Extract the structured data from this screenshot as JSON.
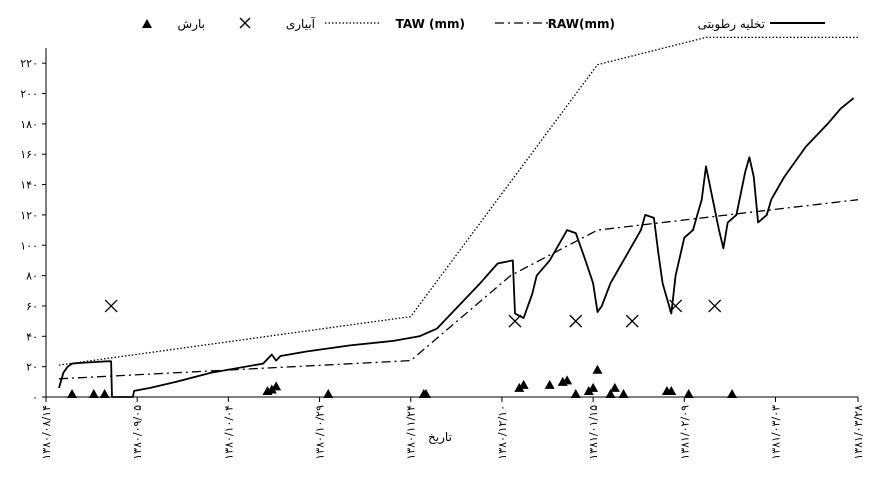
{
  "chart_data": {
    "type": "line",
    "title": "",
    "xlabel": "تاریخ",
    "ylabel": "",
    "ylim": [
      0,
      230
    ],
    "x_range": [
      0,
      187
    ],
    "y_ticks": [
      {
        "value": 0,
        "label": "۰"
      },
      {
        "value": 20,
        "label": "۲۰"
      },
      {
        "value": 40,
        "label": "۴۰"
      },
      {
        "value": 60,
        "label": "۶۰"
      },
      {
        "value": 80,
        "label": "۸۰"
      },
      {
        "value": 100,
        "label": "۱۰۰"
      },
      {
        "value": 120,
        "label": "۱۲۰"
      },
      {
        "value": 140,
        "label": "۱۴۰"
      },
      {
        "value": 160,
        "label": "۱۶۰"
      },
      {
        "value": 180,
        "label": "۱۸۰"
      },
      {
        "value": 200,
        "label": "۲۰۰"
      },
      {
        "value": 220,
        "label": "۲۲۰"
      }
    ],
    "x_ticks": [
      {
        "value": 0,
        "label": "۱۳۸۰/۰۸/۱۴"
      },
      {
        "value": 21,
        "label": "۱۳۸۰/۰۹/۰۵"
      },
      {
        "value": 42,
        "label": "۱۳۸۰/۱۰/۰۴"
      },
      {
        "value": 63,
        "label": "۱۳۸۰/۱۰/۲۹"
      },
      {
        "value": 84,
        "label": "۱۳۸۰/۱۱/۲۴"
      },
      {
        "value": 105,
        "label": "۱۳۸۰/۱۲/۱۰"
      },
      {
        "value": 126,
        "label": "۱۳۸۱/۰۱/۱۵"
      },
      {
        "value": 147,
        "label": "۱۳۸۱/۰۲/۰۹"
      },
      {
        "value": 168,
        "label": "۱۳۸۱/۰۳/۰۳"
      },
      {
        "value": 187,
        "label": "۱۳۸۱/۰۳/۲۸"
      }
    ],
    "legend_position": "top",
    "series": [
      {
        "name": "تخلیه رطوبتی",
        "style": "solid",
        "x": [
          3,
          4,
          5,
          6,
          8,
          11,
          14,
          15,
          15.2,
          19,
          20,
          20.3,
          24,
          30,
          38,
          50,
          52,
          53,
          54,
          60,
          70,
          80,
          86,
          90,
          95,
          100,
          104,
          107.5,
          108,
          110,
          112,
          113,
          116,
          118,
          120,
          122,
          124,
          126,
          127,
          128,
          130,
          132,
          135,
          137,
          138,
          140,
          141,
          142,
          144,
          145,
          147,
          149,
          150,
          151,
          152,
          155,
          156,
          157,
          159,
          161,
          162,
          163,
          164,
          166,
          167,
          170,
          175,
          180,
          183,
          186
        ],
        "y": [
          6,
          16,
          20,
          22,
          22.5,
          23,
          23.5,
          23.5,
          0,
          0,
          0,
          4,
          6,
          10,
          16,
          22,
          28,
          24,
          27,
          30,
          34,
          37,
          40,
          45,
          60,
          75,
          88,
          90,
          55,
          52,
          68,
          80,
          90,
          100,
          110,
          108,
          92,
          75,
          56,
          60,
          75,
          85,
          100,
          110,
          120,
          118,
          95,
          75,
          55,
          80,
          105,
          110,
          120,
          130,
          152,
          110,
          98,
          115,
          120,
          148,
          158,
          145,
          115,
          120,
          130,
          145,
          165,
          180,
          190,
          197
        ]
      },
      {
        "name": "RAW(mm)",
        "style": "dashdot",
        "x": [
          3,
          84,
          107,
          127,
          187
        ],
        "y": [
          12,
          24,
          80,
          110,
          130
        ]
      },
      {
        "name": "TAW (mm)",
        "style": "dotted",
        "x": [
          3,
          84,
          127,
          152,
          187
        ],
        "y": [
          21,
          53,
          219,
          237,
          237
        ]
      },
      {
        "name": "آبیاری",
        "style": "cross",
        "x": [
          15,
          108,
          122,
          135,
          145,
          154
        ],
        "y": [
          60,
          50,
          50,
          50,
          60,
          60
        ]
      },
      {
        "name": "بارش",
        "style": "triangle",
        "x": [
          6,
          11,
          13.5,
          51,
          52,
          53,
          65,
          87,
          87.5,
          109,
          110,
          116,
          119,
          120,
          122,
          125,
          126,
          127,
          130,
          131,
          133,
          143,
          144,
          148,
          158
        ],
        "y": [
          0,
          0,
          0,
          2,
          3,
          5,
          0,
          0,
          0,
          4,
          6,
          6,
          8,
          9,
          0,
          2,
          4,
          16,
          0,
          4,
          0,
          2,
          2,
          0,
          0
        ]
      }
    ]
  }
}
